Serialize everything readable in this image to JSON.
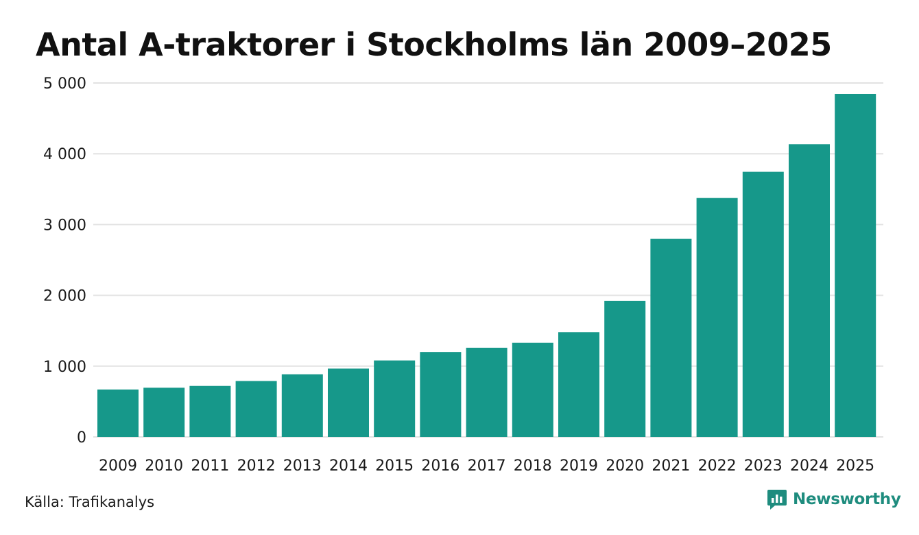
{
  "chart_data": {
    "type": "bar",
    "title": "Antal A-traktorer i Stockholms län 2009–2025",
    "xlabel": "",
    "ylabel": "",
    "categories": [
      "2009",
      "2010",
      "2011",
      "2012",
      "2013",
      "2014",
      "2015",
      "2016",
      "2017",
      "2018",
      "2019",
      "2020",
      "2021",
      "2022",
      "2023",
      "2024",
      "2025"
    ],
    "values": [
      670,
      695,
      720,
      790,
      885,
      965,
      1080,
      1200,
      1260,
      1330,
      1480,
      1920,
      2800,
      3375,
      3745,
      4135,
      4845
    ],
    "ylim": [
      0,
      5000
    ],
    "yticks": [
      0,
      1000,
      2000,
      3000,
      4000,
      5000
    ],
    "ytick_labels": [
      "0",
      "1 000",
      "2 000",
      "3 000",
      "4 000",
      "5 000"
    ],
    "grid": true,
    "bar_color": "#16988a",
    "grid_color": "#e2e2e2"
  },
  "footer": {
    "source": "Källa: Trafikanalys",
    "brand": "Newsworthy"
  },
  "colors": {
    "brand": "#1e8c7e"
  }
}
